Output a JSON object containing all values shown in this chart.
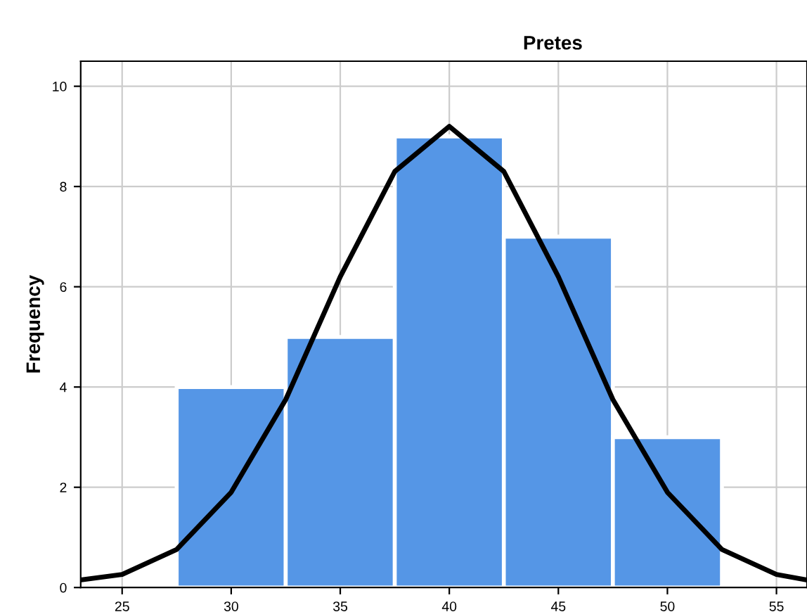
{
  "chart_data": {
    "type": "histogram",
    "title": "Pretes",
    "ylabel": "Frequency",
    "bins": [
      27.5,
      32.5,
      37.5,
      42.5,
      47.5,
      52.5
    ],
    "values": [
      4,
      5,
      9,
      7,
      3
    ],
    "color": "#5596e6",
    "series": [
      {
        "type": "line",
        "color": "#000000",
        "x": [
          23.1,
          25,
          27.5,
          30,
          32.5,
          35,
          37.5,
          40,
          42.5,
          45,
          47.5,
          50,
          52.5,
          55,
          56.4
        ],
        "values": [
          0.15,
          0.26,
          0.76,
          1.9,
          3.75,
          6.2,
          8.3,
          9.2,
          8.3,
          6.2,
          3.75,
          1.9,
          0.76,
          0.26,
          0.15
        ]
      }
    ],
    "xlim": [
      23.1,
      56.4
    ],
    "xticks": [
      25,
      30,
      35,
      40,
      45,
      50,
      55
    ],
    "ylim": [
      0,
      10.5
    ],
    "yticks": [
      0,
      2,
      4,
      6,
      8,
      10
    ],
    "grid": true,
    "marker": "none",
    "line_style": "solid"
  }
}
